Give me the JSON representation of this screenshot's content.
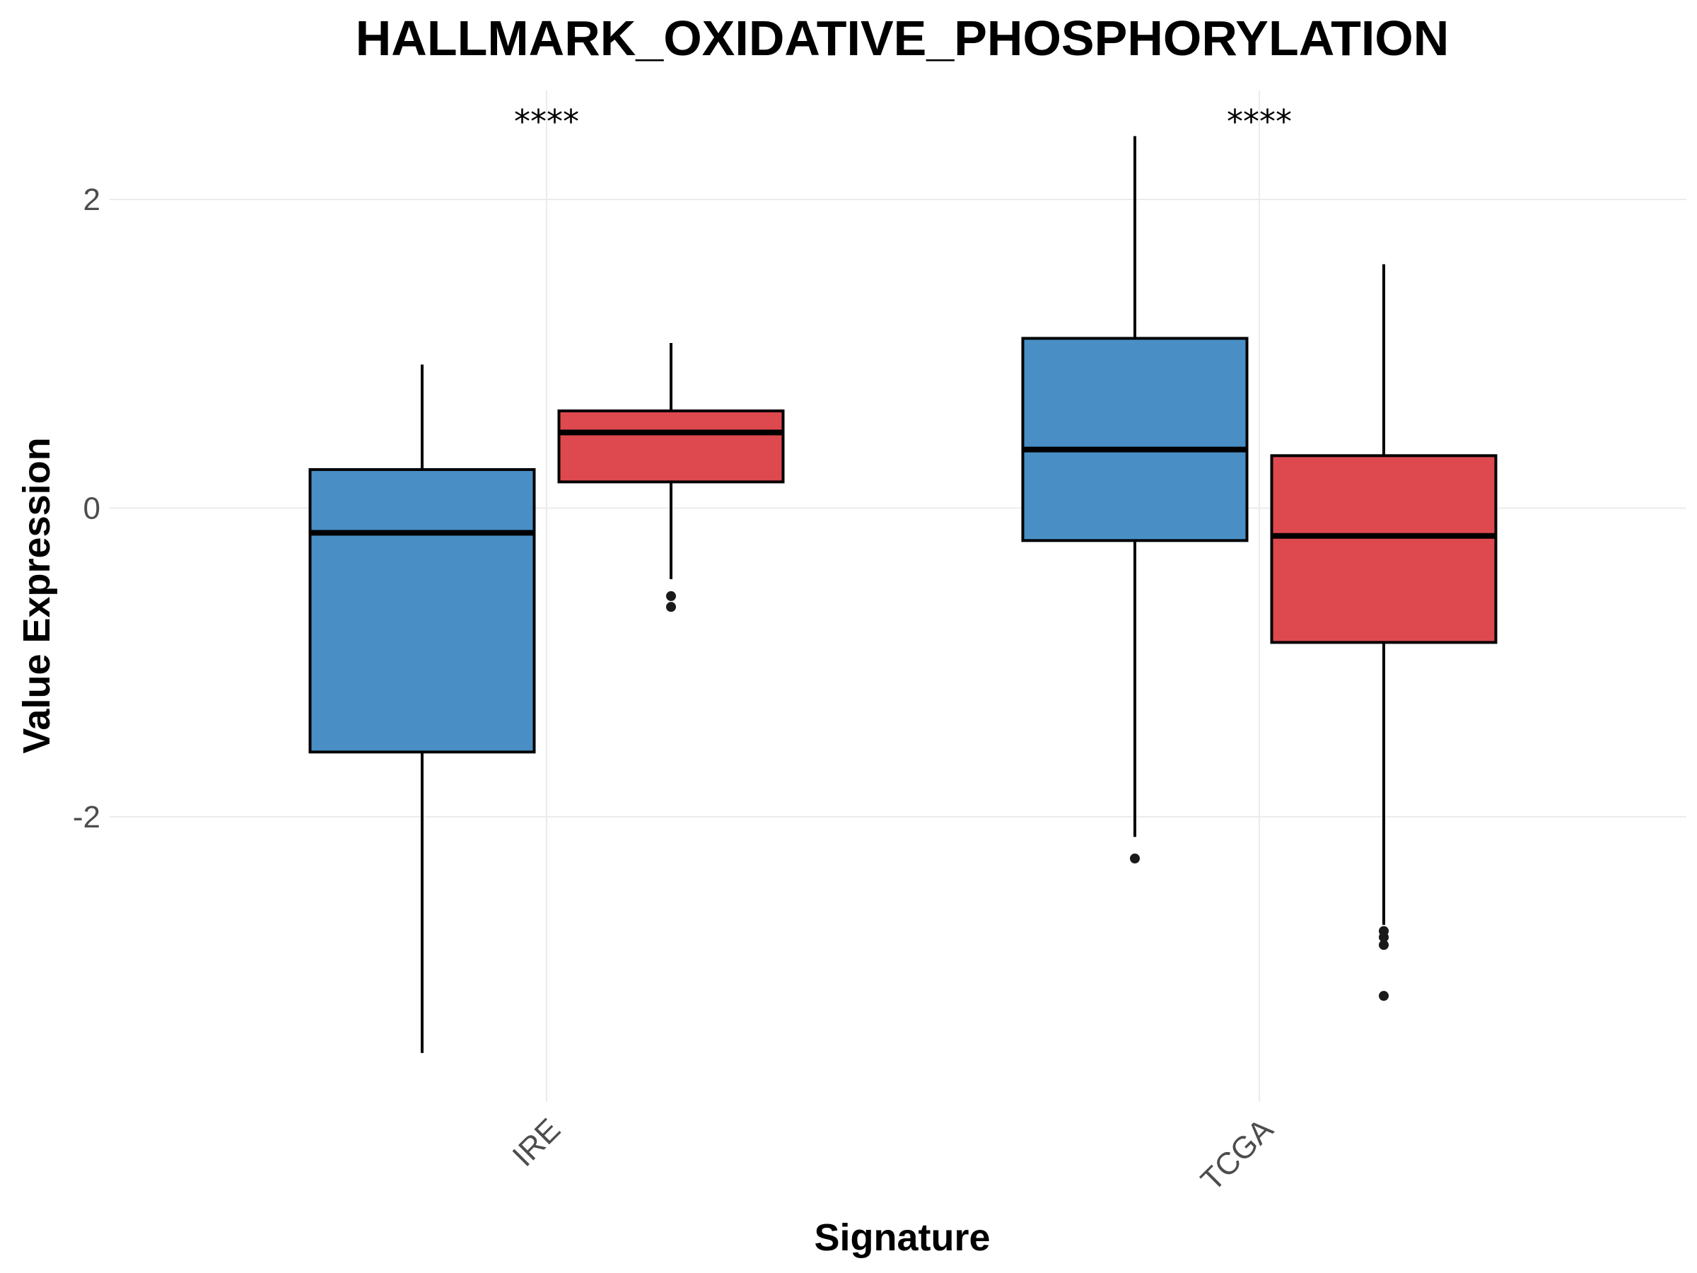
{
  "chart_data": {
    "type": "box",
    "title": "HALLMARK_OXIDATIVE_PHOSPHORYLATION",
    "xlabel": "Signature",
    "ylabel": "Value Expression",
    "categories": [
      "IRE",
      "TCGA"
    ],
    "ylim": [
      -3.85,
      2.7
    ],
    "yticks": [
      2,
      0,
      -2
    ],
    "ytick_labels": [
      "2",
      "0",
      "-2"
    ],
    "grid": true,
    "legend": "none",
    "significance": [
      "****",
      "****"
    ],
    "series": [
      {
        "color": "#3a85c0",
        "boxes": [
          {
            "category": "IRE",
            "whisker_low": -3.53,
            "q1": -1.58,
            "median": -0.16,
            "q3": 0.25,
            "whisker_high": 0.93,
            "outliers": []
          },
          {
            "category": "TCGA",
            "whisker_low": -2.13,
            "q1": -0.21,
            "median": 0.38,
            "q3": 1.1,
            "whisker_high": 2.41,
            "outliers": [
              -2.27
            ]
          }
        ]
      },
      {
        "color": "#db3a40",
        "boxes": [
          {
            "category": "IRE",
            "whisker_low": -0.46,
            "q1": 0.17,
            "median": 0.49,
            "q3": 0.63,
            "whisker_high": 1.07,
            "outliers": [
              -0.57,
              -0.64
            ]
          },
          {
            "category": "TCGA",
            "whisker_low": -2.7,
            "q1": -0.87,
            "median": -0.18,
            "q3": 0.34,
            "whisker_high": 1.58,
            "outliers": [
              -2.74,
              -2.78,
              -2.83,
              -3.16
            ]
          }
        ]
      }
    ]
  }
}
